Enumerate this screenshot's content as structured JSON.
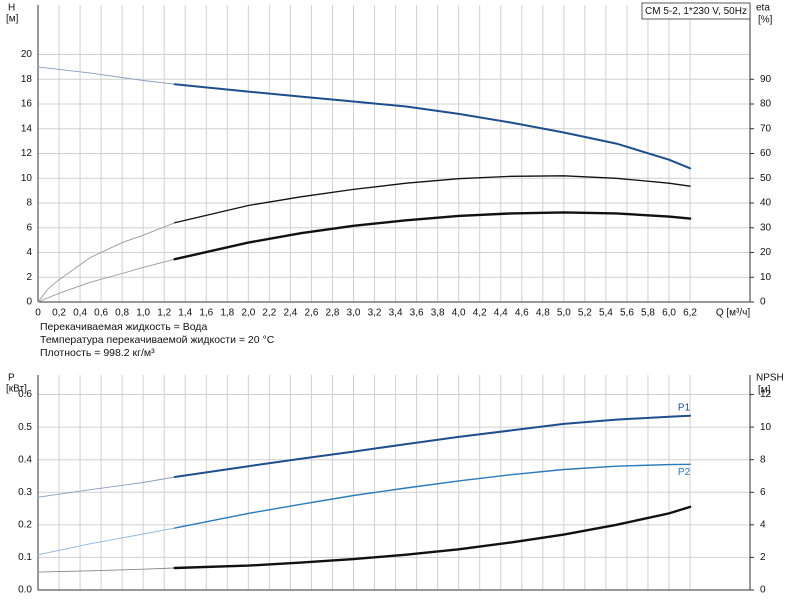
{
  "chart_data": [
    {
      "type": "line",
      "title": "CM 5-2, 1*230 V, 50Hz",
      "ylabel": "H",
      "yunit": "[м]",
      "y2label": "eta",
      "y2unit": "[%]",
      "xlabel": "Q [м³/ч]",
      "notes": [
        "Перекачиваемая жидкость = Вода",
        "Температура перекачиваемой жидкости = 20 °C",
        "Плотность = 998.2 кг/м³"
      ],
      "xlim": [
        0,
        6.77
      ],
      "xticks": [
        0,
        {
          "value": 0.2,
          "label": "0,2"
        },
        {
          "value": 0.4,
          "label": "0,4"
        },
        {
          "value": 0.6,
          "label": "0,6"
        },
        {
          "value": 0.8,
          "label": "0,8"
        },
        {
          "value": 1.0,
          "label": "1,0"
        },
        {
          "value": 1.2,
          "label": "1,2"
        },
        {
          "value": 1.4,
          "label": "1,4"
        },
        {
          "value": 1.6,
          "label": "1,6"
        },
        {
          "value": 1.8,
          "label": "1,8"
        },
        {
          "value": 2.0,
          "label": "2,0"
        },
        {
          "value": 2.2,
          "label": "2,2"
        },
        {
          "value": 2.4,
          "label": "2,4"
        },
        {
          "value": 2.6,
          "label": "2,6"
        },
        {
          "value": 2.8,
          "label": "2,8"
        },
        {
          "value": 3.0,
          "label": "3,0"
        },
        {
          "value": 3.2,
          "label": "3,2"
        },
        {
          "value": 3.4,
          "label": "3,4"
        },
        {
          "value": 3.6,
          "label": "3,6"
        },
        {
          "value": 3.8,
          "label": "3,8"
        },
        {
          "value": 4.0,
          "label": "4,0"
        },
        {
          "value": 4.2,
          "label": "4,2"
        },
        {
          "value": 4.4,
          "label": "4,4"
        },
        {
          "value": 4.6,
          "label": "4,6"
        },
        {
          "value": 4.8,
          "label": "4,8"
        },
        {
          "value": 5.0,
          "label": "5,0"
        },
        {
          "value": 5.2,
          "label": "5,2"
        },
        {
          "value": 5.4,
          "label": "5,4"
        },
        {
          "value": 5.6,
          "label": "5,6"
        },
        {
          "value": 5.8,
          "label": "5,8"
        },
        {
          "value": 6.0,
          "label": "6,0"
        },
        {
          "value": 6.2,
          "label": "6,2"
        }
      ],
      "ylim": [
        0,
        24
      ],
      "yticks": [
        0,
        2,
        4,
        6,
        8,
        10,
        12,
        14,
        16,
        18,
        20
      ],
      "y2lim": [
        0,
        120
      ],
      "y2ticks": [
        0,
        10,
        20,
        30,
        40,
        50,
        60,
        70,
        80,
        90
      ],
      "grid": true,
      "series": [
        {
          "color": "#8a9cc0",
          "width": 0.9,
          "x": [
            0,
            0.5,
            1.0,
            1.3
          ],
          "values": [
            19,
            18.5,
            17.9,
            17.6
          ]
        },
        {
          "color": "#1f4e8c",
          "width": 2,
          "x": [
            1.3,
            2,
            2.5,
            3,
            3.5,
            4,
            4.5,
            5,
            5.5,
            6,
            6.2
          ],
          "values": [
            17.6,
            17.0,
            16.6,
            16.2,
            15.8,
            15.2,
            14.5,
            13.7,
            12.8,
            11.5,
            10.8
          ]
        },
        {
          "color": "#999999",
          "width": 0.9,
          "axis": "y2",
          "x": [
            0,
            0.1,
            0.2,
            0.5,
            0.8,
            1.0,
            1.3
          ],
          "values": [
            0,
            5.5,
            9,
            18,
            24,
            27,
            32
          ]
        },
        {
          "color": "#111111",
          "width": 1.3,
          "axis": "y2",
          "x": [
            1.3,
            2,
            2.5,
            3,
            3.5,
            4,
            4.5,
            5,
            5.5,
            6,
            6.2
          ],
          "values": [
            32,
            39,
            42.5,
            45.5,
            48,
            49.8,
            50.8,
            51,
            50,
            48,
            46.8
          ]
        },
        {
          "color": "#999999",
          "width": 0.9,
          "axis": "y2",
          "x": [
            0,
            0.2,
            0.5,
            0.8,
            1.0,
            1.3
          ],
          "values": [
            0,
            3.5,
            8,
            11.5,
            14,
            17.3
          ]
        },
        {
          "color": "#111111",
          "width": 2.4,
          "axis": "y2",
          "x": [
            1.3,
            2,
            2.5,
            3,
            3.5,
            4,
            4.5,
            5,
            5.5,
            6,
            6.2
          ],
          "values": [
            17.3,
            24,
            27.8,
            30.8,
            33,
            34.8,
            35.8,
            36.2,
            35.8,
            34.5,
            33.7
          ]
        }
      ]
    },
    {
      "type": "line",
      "ylabel": "P",
      "yunit": "[кВт]",
      "y2label": "NPSH",
      "y2unit": "[м]",
      "xlim": [
        0,
        6.77
      ],
      "xticks": [
        0,
        0.2,
        0.4,
        0.6,
        0.8,
        1.0,
        1.2,
        1.4,
        1.6,
        1.8,
        2.0,
        2.2,
        2.4,
        2.6,
        2.8,
        3.0,
        3.2,
        3.4,
        3.6,
        3.8,
        4.0,
        4.2,
        4.4,
        4.6,
        4.8,
        5.0,
        5.2,
        5.4,
        5.6,
        5.8,
        6.0,
        6.2
      ],
      "xtick_labels": false,
      "ylim": [
        0,
        0.66
      ],
      "yticks": [
        {
          "value": 0,
          "label": "0.0"
        },
        0.1,
        0.2,
        0.3,
        0.4,
        0.5,
        0.6
      ],
      "y2lim": [
        0,
        13.2
      ],
      "y2ticks": [
        0,
        2,
        4,
        6,
        8,
        10,
        12
      ],
      "grid": true,
      "series": [
        {
          "color": "#8a9cc0",
          "width": 0.9,
          "x": [
            0,
            0.5,
            1.0,
            1.3
          ],
          "values": [
            0.285,
            0.308,
            0.33,
            0.347
          ]
        },
        {
          "name": "P1",
          "color": "#1f4e8c",
          "width": 2,
          "x": [
            1.3,
            2,
            2.5,
            3,
            3.5,
            4,
            4.5,
            5,
            5.5,
            6,
            6.2
          ],
          "values": [
            0.347,
            0.38,
            0.403,
            0.425,
            0.448,
            0.47,
            0.49,
            0.51,
            0.523,
            0.532,
            0.535
          ]
        },
        {
          "color": "#8fb6d8",
          "width": 0.9,
          "x": [
            0,
            0.5,
            1.0,
            1.3
          ],
          "values": [
            0.108,
            0.142,
            0.172,
            0.19
          ]
        },
        {
          "name": "P2",
          "color": "#2a7ab8",
          "width": 1.4,
          "x": [
            1.3,
            2,
            2.5,
            3,
            3.5,
            4,
            4.5,
            5,
            5.5,
            6,
            6.2
          ],
          "values": [
            0.19,
            0.235,
            0.263,
            0.29,
            0.313,
            0.335,
            0.354,
            0.37,
            0.38,
            0.385,
            0.386
          ]
        },
        {
          "color": "#888888",
          "width": 0.9,
          "axis": "y2",
          "x": [
            0,
            0.5,
            1.0,
            1.3
          ],
          "values": [
            1.1,
            1.18,
            1.28,
            1.35
          ]
        },
        {
          "color": "#111111",
          "width": 2.4,
          "axis": "y2",
          "x": [
            1.3,
            2,
            2.5,
            3,
            3.5,
            4,
            4.5,
            5,
            5.5,
            6,
            6.2
          ],
          "values": [
            1.35,
            1.5,
            1.68,
            1.9,
            2.17,
            2.5,
            2.92,
            3.4,
            4.0,
            4.7,
            5.1
          ]
        }
      ]
    }
  ]
}
